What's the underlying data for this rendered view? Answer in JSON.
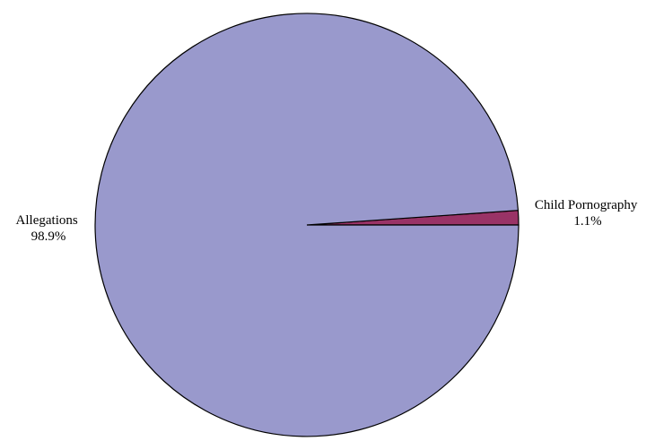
{
  "chart_data": {
    "type": "pie",
    "title": "",
    "slices": [
      {
        "label": "Child Pornography",
        "value": 1.1,
        "display": "1.1%",
        "color": "#993366"
      },
      {
        "label": "Allegations",
        "value": 98.9,
        "display": "98.9%",
        "color": "#9999CC"
      }
    ],
    "start_angle_deg": 0,
    "direction": "counterclockwise",
    "legend": "none",
    "outline_color": "#000000"
  }
}
